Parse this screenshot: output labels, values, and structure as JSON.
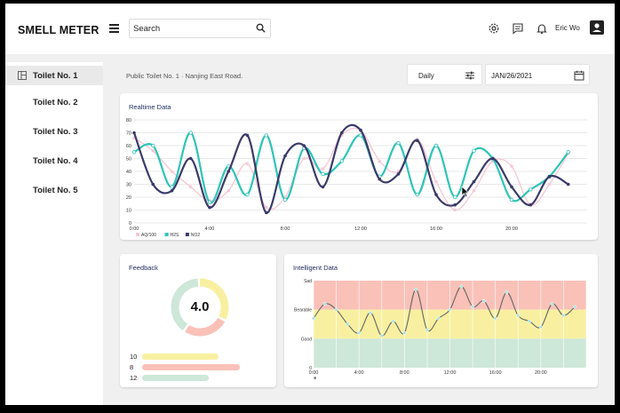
{
  "app": {
    "brand": "SMELL METER"
  },
  "search": {
    "placeholder": "Search",
    "value": ""
  },
  "user": {
    "name": "Eric Wo"
  },
  "icons": {
    "settings": "settings-gear-icon",
    "chat": "chat-icon",
    "bell": "bell-icon",
    "account": "account-box-icon",
    "menu": "menu-icon",
    "search": "search-icon",
    "tune": "tune-icon",
    "calendar": "calendar-icon"
  },
  "sidebar": {
    "items": [
      {
        "label": "Toilet No. 1",
        "active": true
      },
      {
        "label": "Toilet No. 2",
        "active": false
      },
      {
        "label": "Toilet No. 3",
        "active": false
      },
      {
        "label": "Toilet No. 4",
        "active": false
      },
      {
        "label": "Toilet No. 5",
        "active": false
      }
    ]
  },
  "main": {
    "breadcrumb": "Public Toilet No. 1 · Nanjing East Road.",
    "period_select": "Daily",
    "date": "JAN/26/2021"
  },
  "colors": {
    "teal": "#2ec4b6",
    "navy": "#3a3a6a",
    "pink": "#f6c9d6",
    "red_band": "#f9c1b8",
    "yellow_band": "#f8f0a0",
    "green_band": "#cde7d8"
  },
  "realtime": {
    "title": "Realtime Data",
    "chart_data": {
      "type": "line",
      "x_ticks": [
        "0:00",
        "4:00",
        "8:00",
        "12:00",
        "16:00",
        "20:00"
      ],
      "y_ticks": [
        "0",
        "10",
        "20",
        "30",
        "40",
        "50",
        "60",
        "70",
        "80"
      ],
      "ylim": [
        0,
        80
      ],
      "xlim": [
        0,
        24
      ],
      "x": [
        0,
        1,
        2,
        3,
        4,
        5,
        6,
        7,
        8,
        9,
        10,
        11,
        12,
        13,
        14,
        15,
        16,
        17,
        18,
        19,
        20,
        21,
        22,
        23
      ],
      "series": [
        {
          "name": "AQ/100",
          "color": "#f6c9d6",
          "values": [
            66,
            56,
            40,
            28,
            17,
            25,
            46,
            12,
            20,
            50,
            42,
            68,
            72,
            48,
            40,
            65,
            32,
            10,
            25,
            48,
            44,
            14,
            30,
            54
          ]
        },
        {
          "name": "H2S",
          "color": "#2ec4b6",
          "values": [
            55,
            60,
            28,
            70,
            16,
            44,
            22,
            68,
            18,
            58,
            38,
            48,
            68,
            36,
            62,
            22,
            60,
            20,
            56,
            50,
            18,
            26,
            36,
            55
          ]
        },
        {
          "name": "NO2",
          "color": "#3a3a6a",
          "values": [
            70,
            30,
            25,
            50,
            12,
            40,
            68,
            8,
            52,
            60,
            28,
            70,
            72,
            34,
            38,
            64,
            22,
            14,
            32,
            50,
            28,
            14,
            36,
            30
          ]
        }
      ],
      "legend": "bottom-left"
    }
  },
  "feedback": {
    "title": "Feedback",
    "score": "4.0",
    "chart_data": {
      "type": "pie",
      "labels": [
        "yellow",
        "red",
        "green"
      ],
      "values": [
        10,
        8,
        12
      ],
      "colors": [
        "#f8f0a0",
        "#f9c1b8",
        "#cde7d8"
      ]
    },
    "rows": [
      {
        "count": "10",
        "color": "#f8f0a0",
        "fraction": 0.78
      },
      {
        "count": "8",
        "color": "#f9c1b8",
        "fraction": 1.0
      },
      {
        "count": "12",
        "color": "#cde7d8",
        "fraction": 0.68
      }
    ]
  },
  "intel": {
    "title": "Intelligent Data",
    "chart_data": {
      "type": "line",
      "bands": [
        "Sad",
        "Bearable",
        "Good"
      ],
      "x_ticks": [
        "0:00",
        "4:00",
        "8:00",
        "12:00",
        "16:00",
        "20:00"
      ],
      "y_tick_bottom": "0",
      "xlim": [
        0,
        24
      ],
      "ylim": [
        0,
        3
      ],
      "x": [
        0,
        1,
        2,
        3,
        4,
        5,
        6,
        7,
        8,
        9,
        10,
        11,
        12,
        13,
        14,
        15,
        16,
        17,
        18,
        19,
        20,
        21,
        22,
        23
      ],
      "values": [
        1.7,
        2.2,
        2.0,
        1.5,
        1.2,
        1.9,
        1.1,
        1.6,
        1.2,
        2.7,
        1.3,
        1.7,
        2.0,
        2.8,
        2.1,
        2.3,
        1.7,
        2.6,
        1.8,
        1.6,
        1.4,
        2.2,
        1.8,
        2.1
      ],
      "series_marker": "■"
    }
  }
}
